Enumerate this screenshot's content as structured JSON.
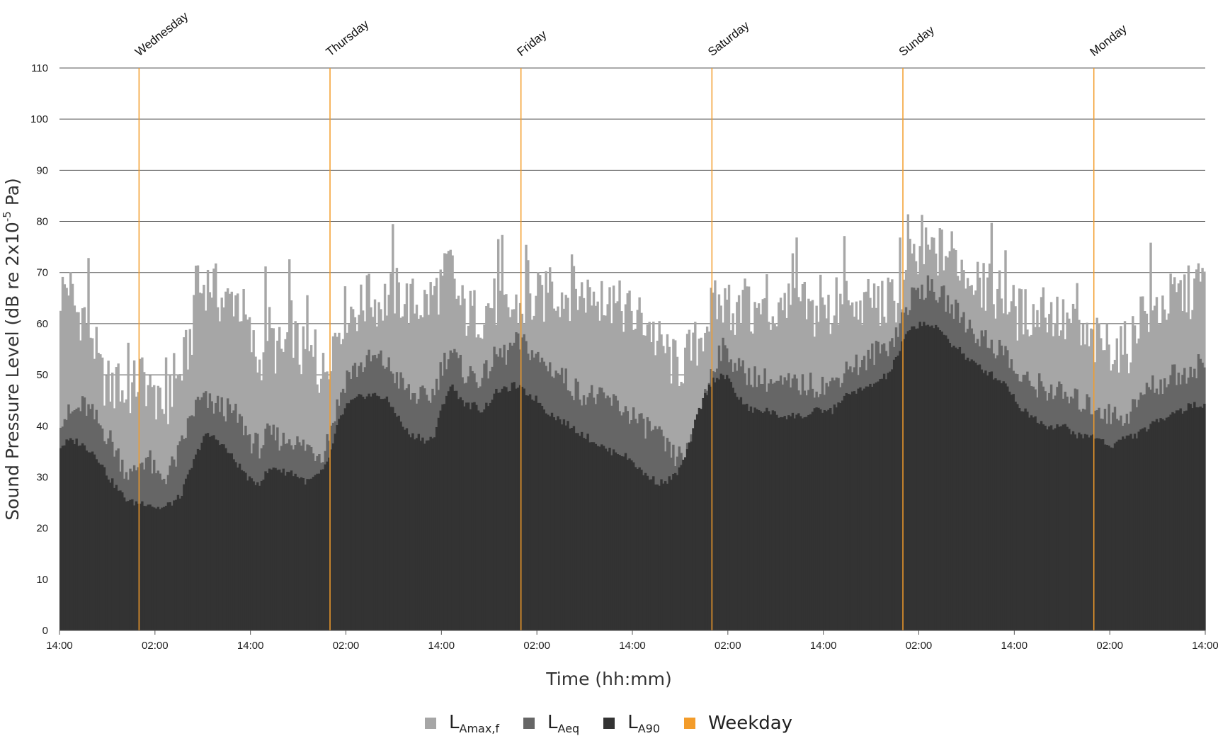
{
  "chart_data": {
    "type": "bar",
    "ylabel": "Sound Pressure Level (dB re 2x10",
    "ylabel_sup": "-5",
    "ylabel_end": " Pa)",
    "xlabel": "Time (hh:mm)",
    "ylim": [
      0,
      110
    ],
    "y_ticks": [
      0,
      10,
      20,
      30,
      40,
      50,
      60,
      70,
      80,
      90,
      100,
      110
    ],
    "x_range_hours": [
      0,
      144
    ],
    "x_ticks": [
      {
        "hour": 0,
        "label": "14:00"
      },
      {
        "hour": 12,
        "label": "02:00"
      },
      {
        "hour": 24,
        "label": "14:00"
      },
      {
        "hour": 36,
        "label": "02:00"
      },
      {
        "hour": 48,
        "label": "14:00"
      },
      {
        "hour": 60,
        "label": "02:00"
      },
      {
        "hour": 72,
        "label": "14:00"
      },
      {
        "hour": 84,
        "label": "02:00"
      },
      {
        "hour": 96,
        "label": "14:00"
      },
      {
        "hour": 108,
        "label": "02:00"
      },
      {
        "hour": 120,
        "label": "14:00"
      },
      {
        "hour": 132,
        "label": "02:00"
      },
      {
        "hour": 144,
        "label": "14:00"
      }
    ],
    "weekday_markers": [
      {
        "hour": 10,
        "label": "Wednesday"
      },
      {
        "hour": 34,
        "label": "Thursday"
      },
      {
        "hour": 58,
        "label": "Friday"
      },
      {
        "hour": 82,
        "label": "Saturday"
      },
      {
        "hour": 106,
        "label": "Sunday"
      },
      {
        "hour": 130,
        "label": "Monday"
      }
    ],
    "grid": true,
    "legend_position": "bottom",
    "series": [
      {
        "name": "LAmax,f",
        "name_main": "L",
        "name_sub": "Amax,f",
        "color": "#a6a6a6",
        "hourly": [
          66,
          68,
          62,
          62,
          58,
          50,
          48,
          47,
          46,
          47,
          50,
          48,
          42,
          44,
          46,
          50,
          55,
          62,
          68,
          68,
          65,
          64,
          66,
          62,
          56,
          52,
          60,
          55,
          54,
          60,
          54,
          54,
          52,
          50,
          56,
          60,
          63,
          63,
          63,
          65,
          64,
          65,
          66,
          65,
          64,
          64,
          64,
          66,
          68,
          72,
          64,
          62,
          62,
          62,
          64,
          64,
          62,
          63,
          63,
          63,
          65,
          65,
          66,
          66,
          66,
          66,
          66,
          66,
          64,
          64,
          63,
          63,
          61,
          61,
          60,
          56,
          55,
          52,
          52,
          54,
          56,
          60,
          63,
          64,
          63,
          62,
          62,
          62,
          62,
          62,
          62,
          62,
          63,
          64,
          62,
          62,
          62,
          62,
          64,
          62,
          62,
          62,
          65,
          64,
          64,
          65,
          67,
          70,
          72,
          74,
          74,
          74,
          74,
          72,
          70,
          68,
          67,
          66,
          66,
          65,
          62,
          62,
          62,
          62,
          62,
          62,
          60,
          60,
          58,
          56,
          56,
          56,
          56,
          55,
          55,
          58,
          62,
          62,
          63,
          64,
          65,
          66,
          66,
          68,
          68
        ]
      },
      {
        "name": "LAeq",
        "name_main": "L",
        "name_sub": "Aeq",
        "color": "#666666",
        "hourly": [
          42,
          42,
          43,
          44,
          42,
          40,
          38,
          35,
          32,
          30,
          33,
          34,
          30,
          30,
          32,
          35,
          40,
          44,
          45,
          44,
          44,
          43,
          42,
          40,
          37,
          36,
          38,
          38,
          37,
          38,
          36,
          36,
          35,
          35,
          40,
          45,
          50,
          51,
          52,
          53,
          53,
          52,
          50,
          48,
          46,
          46,
          45,
          47,
          52,
          55,
          52,
          50,
          50,
          49,
          52,
          54,
          54,
          56,
          56,
          55,
          53,
          52,
          51,
          50,
          48,
          47,
          46,
          46,
          45,
          45,
          44,
          43,
          42,
          40,
          40,
          38,
          36,
          34,
          34,
          35,
          40,
          46,
          52,
          55,
          54,
          52,
          50,
          50,
          49,
          49,
          48,
          48,
          48,
          48,
          48,
          48,
          48,
          48,
          50,
          52,
          52,
          52,
          54,
          55,
          56,
          58,
          62,
          65,
          67,
          67,
          66,
          65,
          63,
          62,
          60,
          58,
          57,
          56,
          55,
          54,
          50,
          49,
          48,
          48,
          47,
          47,
          46,
          45,
          45,
          44,
          44,
          43,
          42,
          42,
          42,
          44,
          46,
          48,
          48,
          49,
          50,
          50,
          51,
          52,
          52
        ]
      },
      {
        "name": "LA90",
        "name_main": "L",
        "name_sub": "A90",
        "color": "#333333",
        "hourly": [
          36,
          37,
          37,
          36,
          35,
          33,
          30,
          28,
          26,
          25,
          25,
          25,
          24,
          24,
          25,
          26,
          30,
          34,
          38,
          38,
          37,
          35,
          33,
          31,
          29,
          29,
          31,
          32,
          31,
          31,
          30,
          29,
          30,
          31,
          35,
          41,
          44,
          45,
          46,
          46,
          46,
          45,
          43,
          40,
          38,
          38,
          37,
          38,
          44,
          48,
          46,
          44,
          44,
          43,
          45,
          47,
          47,
          48,
          47,
          46,
          45,
          43,
          42,
          41,
          40,
          39,
          38,
          37,
          36,
          35,
          35,
          34,
          33,
          31,
          30,
          29,
          29,
          30,
          32,
          36,
          42,
          46,
          49,
          50,
          49,
          46,
          44,
          43,
          43,
          43,
          42,
          42,
          42,
          42,
          42,
          43,
          43,
          43,
          45,
          46,
          47,
          47,
          48,
          49,
          50,
          53,
          57,
          59,
          60,
          60,
          59,
          58,
          56,
          55,
          53,
          52,
          51,
          50,
          49,
          48,
          45,
          43,
          42,
          41,
          40,
          40,
          40,
          39,
          38,
          38,
          38,
          37,
          36,
          37,
          38,
          38,
          39,
          40,
          41,
          42,
          43,
          43,
          44,
          44,
          44
        ]
      },
      {
        "name": "Weekday",
        "name_main": "Weekday",
        "name_sub": "",
        "color": "#f39c2a"
      }
    ]
  }
}
